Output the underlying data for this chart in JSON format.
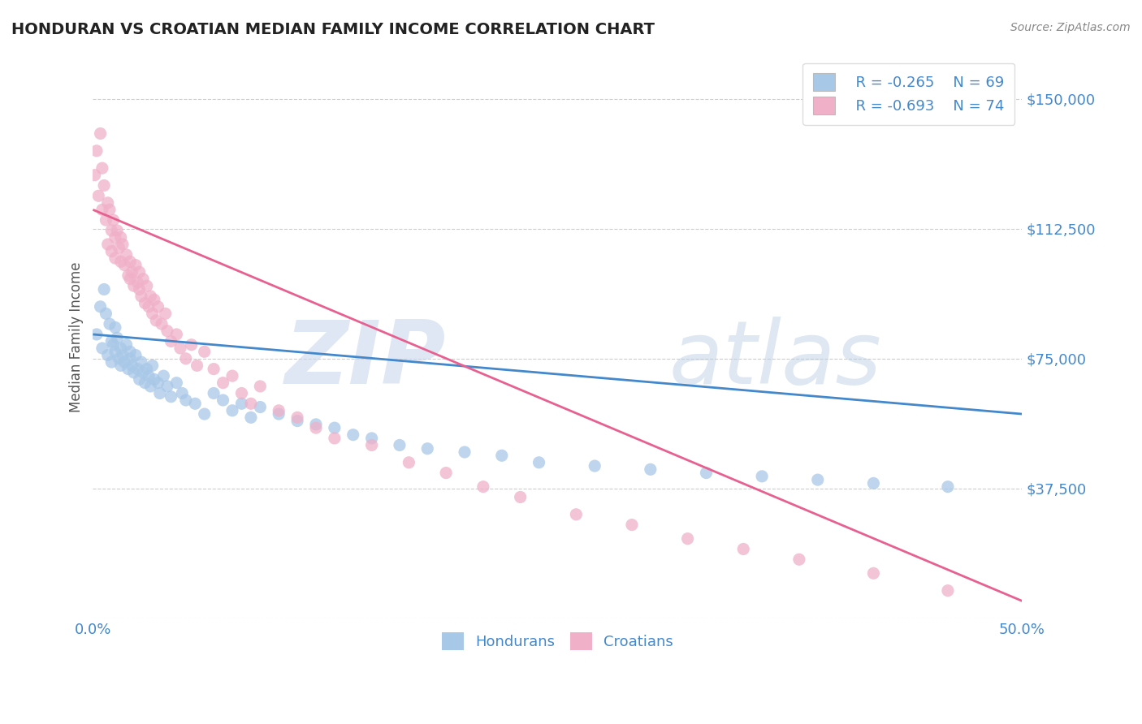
{
  "title": "HONDURAN VS CROATIAN MEDIAN FAMILY INCOME CORRELATION CHART",
  "source_text": "Source: ZipAtlas.com",
  "ylabel": "Median Family Income",
  "xlim": [
    0.0,
    0.5
  ],
  "ylim": [
    0,
    162500
  ],
  "yticks": [
    0,
    37500,
    75000,
    112500,
    150000
  ],
  "ytick_labels": [
    "",
    "$37,500",
    "$75,000",
    "$112,500",
    "$150,000"
  ],
  "xticks": [
    0.0,
    0.5
  ],
  "xtick_labels": [
    "0.0%",
    "50.0%"
  ],
  "background_color": "#ffffff",
  "grid_color": "#cccccc",
  "honduran_color": "#a8c8e8",
  "croatian_color": "#f0b0c8",
  "honduran_line_color": "#4488cc",
  "croatian_line_color": "#e86090",
  "watermark_zip_color": "#c8d8ee",
  "watermark_atlas_color": "#b8cce4",
  "title_color": "#222222",
  "source_color": "#888888",
  "axis_label_color": "#555555",
  "tick_color": "#4488cc",
  "legend_text_color": "#4488cc",
  "legend_r_honduran": "R = -0.265",
  "legend_n_honduran": "N = 69",
  "legend_r_croatian": "R = -0.693",
  "legend_n_croatian": "N = 74",
  "hondurans_scatter": {
    "x": [
      0.002,
      0.004,
      0.005,
      0.006,
      0.007,
      0.008,
      0.009,
      0.01,
      0.01,
      0.011,
      0.012,
      0.012,
      0.013,
      0.014,
      0.015,
      0.015,
      0.016,
      0.017,
      0.018,
      0.019,
      0.02,
      0.02,
      0.021,
      0.022,
      0.023,
      0.024,
      0.025,
      0.026,
      0.027,
      0.028,
      0.029,
      0.03,
      0.031,
      0.032,
      0.033,
      0.035,
      0.036,
      0.038,
      0.04,
      0.042,
      0.045,
      0.048,
      0.05,
      0.055,
      0.06,
      0.065,
      0.07,
      0.075,
      0.08,
      0.085,
      0.09,
      0.1,
      0.11,
      0.12,
      0.13,
      0.14,
      0.15,
      0.165,
      0.18,
      0.2,
      0.22,
      0.24,
      0.27,
      0.3,
      0.33,
      0.36,
      0.39,
      0.42,
      0.46
    ],
    "y": [
      82000,
      90000,
      78000,
      95000,
      88000,
      76000,
      85000,
      74000,
      80000,
      79000,
      77000,
      84000,
      81000,
      75000,
      73000,
      78000,
      76000,
      74000,
      79000,
      72000,
      75000,
      77000,
      73000,
      71000,
      76000,
      72000,
      69000,
      74000,
      71000,
      68000,
      72000,
      70000,
      67000,
      73000,
      69000,
      68000,
      65000,
      70000,
      67000,
      64000,
      68000,
      65000,
      63000,
      62000,
      59000,
      65000,
      63000,
      60000,
      62000,
      58000,
      61000,
      59000,
      57000,
      56000,
      55000,
      53000,
      52000,
      50000,
      49000,
      48000,
      47000,
      45000,
      44000,
      43000,
      42000,
      41000,
      40000,
      39000,
      38000
    ]
  },
  "croatians_scatter": {
    "x": [
      0.001,
      0.002,
      0.003,
      0.004,
      0.005,
      0.005,
      0.006,
      0.007,
      0.008,
      0.008,
      0.009,
      0.01,
      0.01,
      0.011,
      0.012,
      0.012,
      0.013,
      0.014,
      0.015,
      0.015,
      0.016,
      0.017,
      0.018,
      0.019,
      0.02,
      0.02,
      0.021,
      0.022,
      0.023,
      0.024,
      0.025,
      0.025,
      0.026,
      0.027,
      0.028,
      0.029,
      0.03,
      0.031,
      0.032,
      0.033,
      0.034,
      0.035,
      0.037,
      0.039,
      0.04,
      0.042,
      0.045,
      0.047,
      0.05,
      0.053,
      0.056,
      0.06,
      0.065,
      0.07,
      0.075,
      0.08,
      0.085,
      0.09,
      0.1,
      0.11,
      0.12,
      0.13,
      0.15,
      0.17,
      0.19,
      0.21,
      0.23,
      0.26,
      0.29,
      0.32,
      0.35,
      0.38,
      0.42,
      0.46
    ],
    "y": [
      128000,
      135000,
      122000,
      140000,
      130000,
      118000,
      125000,
      115000,
      120000,
      108000,
      118000,
      112000,
      106000,
      115000,
      110000,
      104000,
      112000,
      107000,
      103000,
      110000,
      108000,
      102000,
      105000,
      99000,
      103000,
      98000,
      100000,
      96000,
      102000,
      97000,
      95000,
      100000,
      93000,
      98000,
      91000,
      96000,
      90000,
      93000,
      88000,
      92000,
      86000,
      90000,
      85000,
      88000,
      83000,
      80000,
      82000,
      78000,
      75000,
      79000,
      73000,
      77000,
      72000,
      68000,
      70000,
      65000,
      62000,
      67000,
      60000,
      58000,
      55000,
      52000,
      50000,
      45000,
      42000,
      38000,
      35000,
      30000,
      27000,
      23000,
      20000,
      17000,
      13000,
      8000
    ]
  },
  "honduran_line": {
    "x0": 0.0,
    "y0": 82000,
    "x1": 0.5,
    "y1": 59000
  },
  "croatian_line": {
    "x0": 0.0,
    "y0": 118000,
    "x1": 0.5,
    "y1": 5000
  }
}
